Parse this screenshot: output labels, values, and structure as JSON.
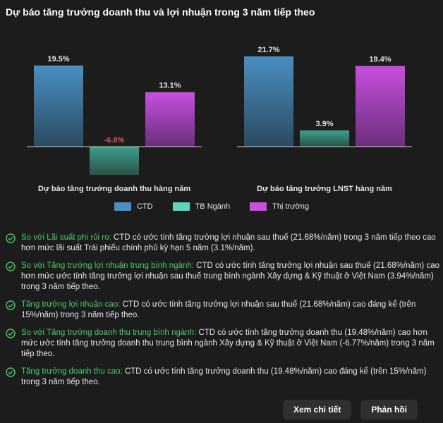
{
  "title": "Dự báo tăng trưởng doanh thu và lợi nhuận trong 3 năm tiếp theo",
  "colors": {
    "ctd": "#4a90c2",
    "tb_nganh": "#5ed6bc",
    "thi_truong": "#c84fe0",
    "highlight": "#4cc96a"
  },
  "chart_data": [
    {
      "type": "bar",
      "title": "Dự báo tăng trưởng doanh thu hàng năm",
      "categories": [
        "CTD",
        "TB Ngành",
        "Thị trường"
      ],
      "values": [
        19.5,
        -6.8,
        13.1
      ],
      "labels": [
        "19.5%",
        "-6.8%",
        "13.1%"
      ]
    },
    {
      "type": "bar",
      "title": "Dự báo tăng trưởng LNST hàng năm",
      "categories": [
        "CTD",
        "TB Ngành",
        "Thị trường"
      ],
      "values": [
        21.7,
        3.9,
        19.4
      ],
      "labels": [
        "21.7%",
        "3.9%",
        "19.4%"
      ]
    }
  ],
  "legend": [
    {
      "label": "CTD",
      "color": "#4a90c2"
    },
    {
      "label": "TB Ngành",
      "color": "#5ed6bc"
    },
    {
      "label": "Thị trường",
      "color": "#c84fe0"
    }
  ],
  "insights": [
    {
      "title": "So với Lãi suất phi rủi ro:",
      "text": " CTD có ước tính tăng trưởng lợi nhuận sau thuế (21.68%/năm) trong 3 năm tiếp theo cao hơn mức lãi suất Trái phiếu chính phủ kỳ hạn 5 năm (3.1%/năm)."
    },
    {
      "title": "So với Tăng trưởng lợi nhuận trung bình ngành:",
      "text": " CTD có ước tính tăng trưởng lợi nhuận sau thuế (21.68%/năm) cao hơn mức ước tính tăng trưởng lợi nhuận sau thuế trung bình ngành Xây dựng & Kỹ thuật ở Việt Nam (3.94%/năm) trong 3 năm tiếp theo."
    },
    {
      "title": "Tăng trưởng lợi nhuận cao:",
      "text": " CTD có ước tính tăng trưởng lợi nhuận sau thuế (21.68%/năm) cao đáng kể (trên 15%/năm) trong 3 năm tiếp theo."
    },
    {
      "title": "So với Tăng trưởng doanh thu trung bình ngành:",
      "text": " CTD có ước tính tăng trưởng doanh thu (19.48%/năm) cao hơn mức ước tính tăng trưởng doanh thu trung bình ngành Xây dựng & Kỹ thuật ở Việt Nam (-6.77%/năm) trong 3 năm tiếp theo."
    },
    {
      "title": "Tăng trưởng doanh thu cao:",
      "text": " CTD có ước tính tăng trưởng doanh thu (19.48%/năm) cao đáng kể (trên 15%/năm) trong 3 năm tiếp theo."
    }
  ],
  "buttons": {
    "detail": "Xem chi tiết",
    "feedback": "Phản hồi"
  }
}
